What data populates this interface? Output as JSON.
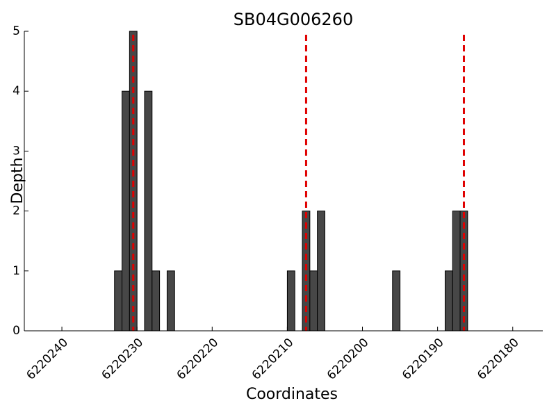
{
  "chart_data": {
    "type": "bar",
    "title": "SB04G006260",
    "x_label": "Coordinates",
    "y_label": "Depth",
    "x": [
      6220233,
      6220232,
      6220231,
      6220229,
      6220228,
      6220226,
      6220210,
      6220208,
      6220207,
      6220206,
      6220196,
      6220189,
      6220188,
      6220187
    ],
    "values": [
      1,
      4,
      5,
      4,
      1,
      1,
      1,
      2,
      1,
      2,
      1,
      1,
      2,
      2
    ],
    "color": "#474747",
    "vlines": [
      6220230.5,
      6220207.5,
      6220186.5
    ],
    "vline_color": "#e00000",
    "xlim": [
      6220245,
      6220176
    ],
    "xticks": [
      6220240,
      6220230,
      6220220,
      6220210,
      6220200,
      6220190,
      6220180
    ],
    "ylim": [
      0,
      5
    ],
    "yticks": [
      0,
      1,
      2,
      3,
      4,
      5
    ]
  }
}
